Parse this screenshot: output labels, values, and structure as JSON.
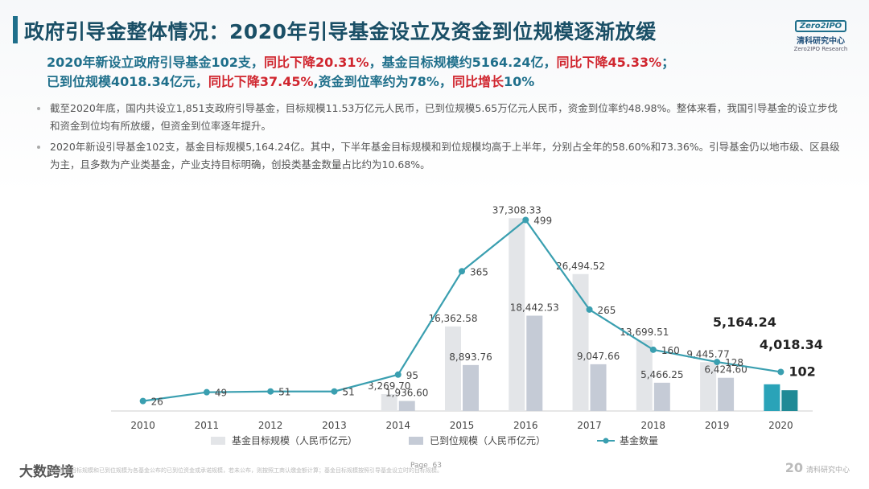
{
  "header": {
    "title": "政府引导金整体情况：2020年引导基金设立及资金到位规模逐渐放缓",
    "logo": {
      "mark": "Zero2IPO",
      "cn": "清科研究中心",
      "en": "Zero2IPO Research"
    }
  },
  "highlight": {
    "line1_a": "2020年新设立政府引导基金102支，",
    "line1_b": "同比下降20.31%",
    "line1_c": "，基金目标规模约5164.24亿，",
    "line1_d": "同比下降45.33%",
    "line1_e": "；",
    "line2_a": "已到位规模4018.34亿元，",
    "line2_b": "同比下降37.45%",
    "line2_c": ",资金到位率约为78%，",
    "line2_d": "同比增长",
    "line2_e": "10%"
  },
  "bullets": [
    "截至2020年底，国内共设立1,851支政府引导基金，目标规模11.53万亿元人民币，已到位规模5.65万亿元人民币，资金到位率约48.98%。整体来看，我国引导基金的设立步伐和资金到位均有所放缓，但资金到位率逐年提升。",
    "2020年新设引导基金102支，基金目标规模5,164.24亿。其中，下半年基金目标规模和到位规模均高于上半年，分别占全年的58.60%和73.36%。引导基金仍以地市级、区县级为主，且多数为产业类基金，产业支持目标明确，创投类基金数量占比约为10.68%。"
  ],
  "chart_data": {
    "type": "bar",
    "categories": [
      "2010",
      "2011",
      "2012",
      "2013",
      "2014",
      "2015",
      "2016",
      "2017",
      "2018",
      "2019",
      "2020"
    ],
    "series": [
      {
        "name": "基金目标规模（人民币亿元）",
        "type": "bar",
        "values": [
          null,
          null,
          null,
          null,
          3269.7,
          16362.58,
          37308.33,
          26494.52,
          13699.51,
          9445.77,
          5164.24
        ],
        "labels": [
          "",
          "",
          "",
          "",
          "3,269.70",
          "16,362.58",
          "37,308.33",
          "26,494.52",
          "13,699.51",
          "9,445.77",
          "5,164.24"
        ],
        "color": "#e3e5e8",
        "highlight_color": "#2aa3b8"
      },
      {
        "name": "已到位规模（人民币亿元）",
        "type": "bar",
        "values": [
          null,
          null,
          null,
          null,
          1936.6,
          8893.76,
          18442.53,
          9047.66,
          5466.25,
          6424.6,
          4018.34
        ],
        "labels": [
          "",
          "",
          "",
          "",
          "1,936.60",
          "8,893.76",
          "18,442.53",
          "9,047.66",
          "5,466.25",
          "6,424.60",
          "4,018.34"
        ],
        "color": "#c5cbd6",
        "highlight_color": "#1f8a96"
      },
      {
        "name": "基金数量",
        "type": "line",
        "values": [
          26,
          49,
          51,
          51,
          95,
          365,
          499,
          265,
          160,
          128,
          102
        ],
        "labels": [
          "26",
          "49",
          "51",
          "51",
          "95",
          "365",
          "499",
          "265",
          "160",
          "128",
          "102"
        ],
        "color": "#3a9fb0"
      }
    ],
    "ylim_bar": [
      0,
      40000
    ],
    "ylim_line": [
      0,
      540
    ]
  },
  "footer": {
    "brand": "大数跨境",
    "note": "注：基金目标规模和已到位规模为各基金公布的已到位资金或承诺规模，若未公布，则按照工商认缴金额计算；基金目标规模按照引导基金设立时的目标规模。",
    "page_label": "Page",
    "page_number": "63",
    "right_mark": "20",
    "right_text": "清科研究中心"
  }
}
